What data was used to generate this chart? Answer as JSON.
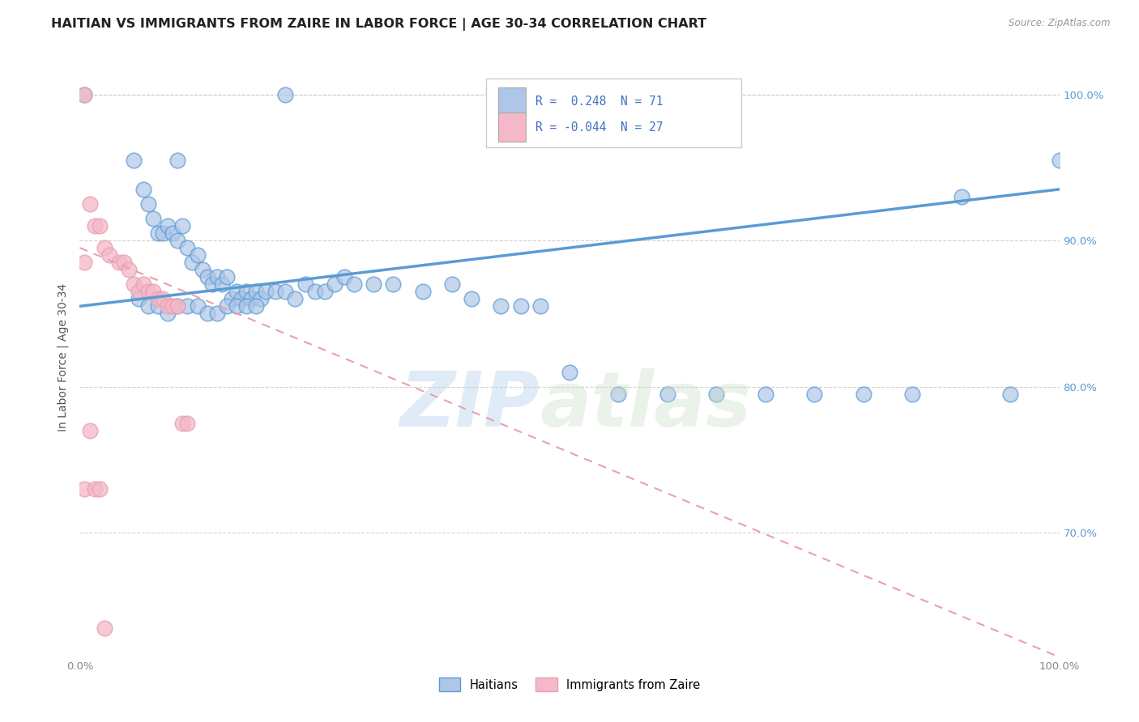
{
  "title": "HAITIAN VS IMMIGRANTS FROM ZAIRE IN LABOR FORCE | AGE 30-34 CORRELATION CHART",
  "source": "Source: ZipAtlas.com",
  "ylabel": "In Labor Force | Age 30-34",
  "xlim": [
    0.0,
    1.0
  ],
  "ylim": [
    0.615,
    1.025
  ],
  "ytick_positions": [
    0.7,
    0.8,
    0.9,
    1.0
  ],
  "ytick_labels": [
    "70.0%",
    "80.0%",
    "90.0%",
    "100.0%"
  ],
  "blue_scatter_x": [
    0.005,
    0.21,
    0.1,
    0.055,
    0.065,
    0.07,
    0.075,
    0.08,
    0.085,
    0.09,
    0.095,
    0.1,
    0.105,
    0.11,
    0.115,
    0.12,
    0.125,
    0.13,
    0.135,
    0.14,
    0.145,
    0.15,
    0.155,
    0.16,
    0.165,
    0.17,
    0.175,
    0.18,
    0.185,
    0.19,
    0.2,
    0.21,
    0.22,
    0.23,
    0.24,
    0.25,
    0.26,
    0.27,
    0.28,
    0.3,
    0.32,
    0.35,
    0.38,
    0.4,
    0.43,
    0.45,
    0.47,
    0.5,
    0.55,
    0.6,
    0.65,
    0.7,
    0.75,
    0.8,
    0.85,
    0.9,
    0.95,
    1.0,
    0.06,
    0.07,
    0.08,
    0.09,
    0.1,
    0.11,
    0.12,
    0.13,
    0.14,
    0.15,
    0.16,
    0.17,
    0.18
  ],
  "blue_scatter_y": [
    1.0,
    1.0,
    0.955,
    0.955,
    0.935,
    0.925,
    0.915,
    0.905,
    0.905,
    0.91,
    0.905,
    0.9,
    0.91,
    0.895,
    0.885,
    0.89,
    0.88,
    0.875,
    0.87,
    0.875,
    0.87,
    0.875,
    0.86,
    0.865,
    0.86,
    0.865,
    0.86,
    0.865,
    0.86,
    0.865,
    0.865,
    0.865,
    0.86,
    0.87,
    0.865,
    0.865,
    0.87,
    0.875,
    0.87,
    0.87,
    0.87,
    0.865,
    0.87,
    0.86,
    0.855,
    0.855,
    0.855,
    0.81,
    0.795,
    0.795,
    0.795,
    0.795,
    0.795,
    0.795,
    0.795,
    0.93,
    0.795,
    0.955,
    0.86,
    0.855,
    0.855,
    0.85,
    0.855,
    0.855,
    0.855,
    0.85,
    0.85,
    0.855,
    0.855,
    0.855,
    0.855
  ],
  "pink_scatter_x": [
    0.005,
    0.005,
    0.01,
    0.015,
    0.02,
    0.025,
    0.03,
    0.04,
    0.045,
    0.05,
    0.055,
    0.06,
    0.065,
    0.07,
    0.075,
    0.08,
    0.085,
    0.09,
    0.095,
    0.1,
    0.105,
    0.11,
    0.005,
    0.01,
    0.015,
    0.02,
    0.025
  ],
  "pink_scatter_y": [
    1.0,
    0.885,
    0.925,
    0.91,
    0.91,
    0.895,
    0.89,
    0.885,
    0.885,
    0.88,
    0.87,
    0.865,
    0.87,
    0.865,
    0.865,
    0.86,
    0.86,
    0.855,
    0.855,
    0.855,
    0.775,
    0.775,
    0.73,
    0.77,
    0.73,
    0.73,
    0.635
  ],
  "blue_line_x": [
    0.0,
    1.0
  ],
  "blue_line_y": [
    0.855,
    0.935
  ],
  "pink_line_x": [
    0.0,
    1.0
  ],
  "pink_line_y": [
    0.895,
    0.615
  ],
  "watermark_left": "ZIP",
  "watermark_right": "atlas",
  "background_color": "#ffffff",
  "grid_color": "#cccccc",
  "blue_color": "#5b9bd5",
  "blue_fill": "#aec6e8",
  "pink_color": "#e8a0b0",
  "pink_fill": "#f4b8c8",
  "title_fontsize": 11.5,
  "axis_label_fontsize": 10,
  "tick_fontsize": 9.5,
  "right_tick_color": "#5b9bd5",
  "legend_r1": "R =  0.248  N = 71",
  "legend_r2": "R = -0.044  N = 27"
}
